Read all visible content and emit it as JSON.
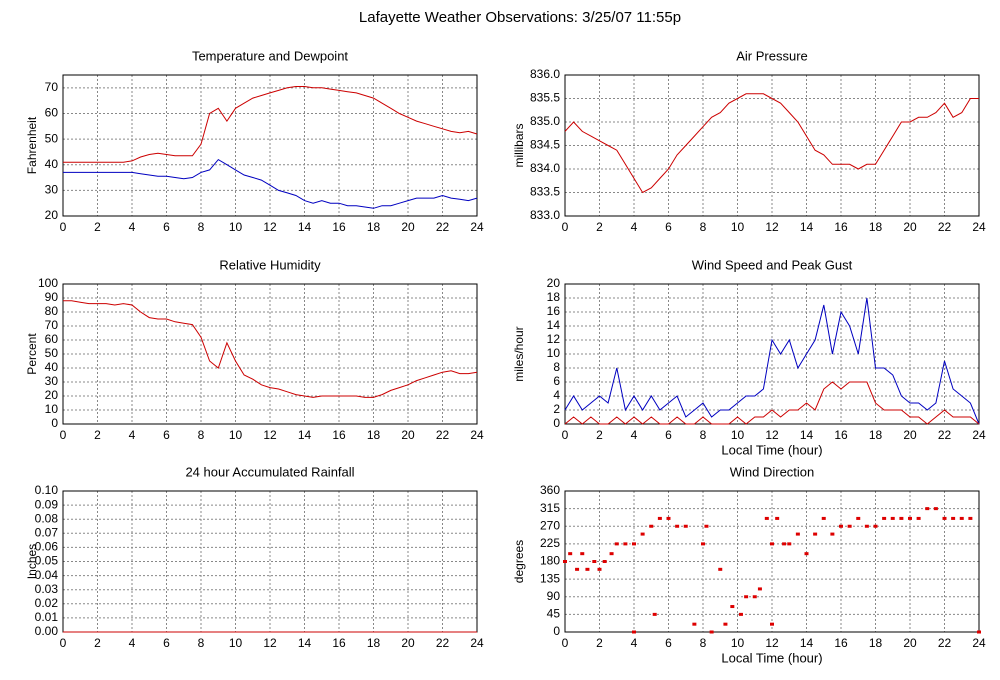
{
  "title": "Lafayette Weather Observations: 3/25/07 11:55p",
  "chart_data": [
    {
      "type": "line",
      "title": "Temperature and Dewpoint",
      "ylabel": "Fahrenheit",
      "grid": true,
      "xlim": [
        0,
        24
      ],
      "xticks": [
        0,
        2,
        4,
        6,
        8,
        10,
        12,
        14,
        16,
        18,
        20,
        22,
        24
      ],
      "ylim": [
        20,
        75
      ],
      "yticks": [
        20,
        30,
        40,
        50,
        60,
        70
      ],
      "x": [
        0,
        0.5,
        1,
        1.5,
        2,
        2.5,
        3,
        3.5,
        4,
        4.5,
        5,
        5.5,
        6,
        6.5,
        7,
        7.5,
        8,
        8.5,
        9,
        9.5,
        10,
        10.5,
        11,
        11.5,
        12,
        12.5,
        13,
        13.5,
        14,
        14.5,
        15,
        15.5,
        16,
        16.5,
        17,
        17.5,
        18,
        18.5,
        19,
        19.5,
        20,
        20.5,
        21,
        21.5,
        22,
        22.5,
        23,
        23.5,
        24
      ],
      "series": [
        {
          "color": "#cc0000",
          "values": [
            41,
            41,
            41,
            41,
            41,
            41,
            41,
            41,
            41.5,
            43,
            44,
            44.5,
            44,
            43.5,
            43.5,
            43.5,
            48,
            60,
            62,
            57,
            62,
            64,
            66,
            67,
            68,
            69,
            70,
            70.5,
            70.5,
            70,
            70,
            69.5,
            69,
            68.5,
            68,
            67,
            66,
            64,
            62,
            60,
            58.5,
            57,
            56,
            55,
            54,
            53,
            52.5,
            53,
            52
          ]
        },
        {
          "color": "#0000c0",
          "values": [
            37,
            37,
            37,
            37,
            37,
            37,
            37,
            37,
            37,
            36.5,
            36,
            35.5,
            35.5,
            35,
            34.5,
            35,
            37,
            38,
            42,
            40,
            38,
            36,
            35,
            34,
            32,
            30,
            29,
            28,
            26,
            25,
            26,
            25,
            25,
            24,
            24,
            23.5,
            23,
            24,
            24,
            25,
            26,
            27,
            27,
            27,
            28,
            27,
            26.5,
            26,
            27
          ]
        }
      ]
    },
    {
      "type": "line",
      "title": "Air Pressure",
      "ylabel": "millibars",
      "grid": true,
      "xlim": [
        0,
        24
      ],
      "xticks": [
        0,
        2,
        4,
        6,
        8,
        10,
        12,
        14,
        16,
        18,
        20,
        22,
        24
      ],
      "ylim": [
        833,
        836
      ],
      "yticks": [
        {
          "value": 833,
          "label": "833.0"
        },
        {
          "value": 833.5,
          "label": "833.5"
        },
        {
          "value": 834,
          "label": "834.0"
        },
        {
          "value": 834.5,
          "label": "834.5"
        },
        {
          "value": 835,
          "label": "835.0"
        },
        {
          "value": 835.5,
          "label": "835.5"
        },
        {
          "value": 836,
          "label": "836.0"
        }
      ],
      "x": [
        0,
        0.5,
        1,
        1.5,
        2,
        2.5,
        3,
        3.5,
        4,
        4.5,
        5,
        5.5,
        6,
        6.5,
        7,
        7.5,
        8,
        8.5,
        9,
        9.5,
        10,
        10.5,
        11,
        11.5,
        12,
        12.5,
        13,
        13.5,
        14,
        14.5,
        15,
        15.5,
        16,
        16.5,
        17,
        17.5,
        18,
        18.5,
        19,
        19.5,
        20,
        20.5,
        21,
        21.5,
        22,
        22.5,
        23,
        23.5,
        24
      ],
      "series": [
        {
          "color": "#cc0000",
          "values": [
            834.8,
            835,
            834.8,
            834.7,
            834.6,
            834.5,
            834.4,
            834.1,
            833.8,
            833.5,
            833.6,
            833.8,
            834,
            834.3,
            834.5,
            834.7,
            834.9,
            835.1,
            835.2,
            835.4,
            835.5,
            835.6,
            835.6,
            835.6,
            835.5,
            835.4,
            835.2,
            835,
            834.7,
            834.4,
            834.3,
            834.1,
            834.1,
            834.1,
            834,
            834.1,
            834.1,
            834.4,
            834.7,
            835,
            835,
            835.1,
            835.1,
            835.2,
            835.4,
            835.1,
            835.2,
            835.5,
            835.5
          ]
        }
      ]
    },
    {
      "type": "line",
      "title": "Relative Humidity",
      "ylabel": "Percent",
      "grid": true,
      "xlim": [
        0,
        24
      ],
      "xticks": [
        0,
        2,
        4,
        6,
        8,
        10,
        12,
        14,
        16,
        18,
        20,
        22,
        24
      ],
      "ylim": [
        0,
        100
      ],
      "yticks": [
        0,
        10,
        20,
        30,
        40,
        50,
        60,
        70,
        80,
        90,
        100
      ],
      "x": [
        0,
        0.5,
        1,
        1.5,
        2,
        2.5,
        3,
        3.5,
        4,
        4.5,
        5,
        5.5,
        6,
        6.5,
        7,
        7.5,
        8,
        8.5,
        9,
        9.5,
        10,
        10.5,
        11,
        11.5,
        12,
        12.5,
        13,
        13.5,
        14,
        14.5,
        15,
        15.5,
        16,
        16.5,
        17,
        17.5,
        18,
        18.5,
        19,
        19.5,
        20,
        20.5,
        21,
        21.5,
        22,
        22.5,
        23,
        23.5,
        24
      ],
      "series": [
        {
          "color": "#cc0000",
          "values": [
            88,
            88,
            87,
            86,
            86,
            86,
            85,
            86,
            85,
            80,
            76,
            75,
            75,
            73,
            72,
            71,
            62,
            45,
            40,
            58,
            45,
            35,
            32,
            28,
            26,
            25,
            23,
            21,
            20,
            19,
            20,
            20,
            20,
            20,
            20,
            19,
            19,
            21,
            24,
            26,
            28,
            31,
            33,
            35,
            37,
            38,
            36,
            36,
            37
          ]
        }
      ]
    },
    {
      "type": "line",
      "title": "Wind Speed and Peak Gust",
      "ylabel": "miles/hour",
      "xlabel": "Local Time (hour)",
      "grid": true,
      "xlim": [
        0,
        24
      ],
      "xticks": [
        0,
        2,
        4,
        6,
        8,
        10,
        12,
        14,
        16,
        18,
        20,
        22,
        24
      ],
      "ylim": [
        0,
        20
      ],
      "yticks": [
        0,
        2,
        4,
        6,
        8,
        10,
        12,
        14,
        16,
        18,
        20
      ],
      "x": [
        0,
        0.5,
        1,
        1.5,
        2,
        2.5,
        3,
        3.5,
        4,
        4.5,
        5,
        5.5,
        6,
        6.5,
        7,
        7.5,
        8,
        8.5,
        9,
        9.5,
        10,
        10.5,
        11,
        11.5,
        12,
        12.5,
        13,
        13.5,
        14,
        14.5,
        15,
        15.5,
        16,
        16.5,
        17,
        17.5,
        18,
        18.5,
        19,
        19.5,
        20,
        20.5,
        21,
        21.5,
        22,
        22.5,
        23,
        23.5,
        24
      ],
      "series": [
        {
          "color": "#0000c0",
          "values": [
            2,
            4,
            2,
            3,
            4,
            3,
            8,
            2,
            4,
            2,
            4,
            2,
            3,
            4,
            1,
            2,
            3,
            1,
            2,
            2,
            3,
            4,
            4,
            5,
            12,
            10,
            12,
            8,
            10,
            12,
            17,
            10,
            16,
            14,
            10,
            18,
            8,
            8,
            7,
            4,
            3,
            3,
            2,
            3,
            9,
            5,
            4,
            3,
            0
          ]
        },
        {
          "color": "#cc0000",
          "values": [
            0,
            1,
            0,
            1,
            0,
            0,
            1,
            0,
            1,
            0,
            1,
            0,
            0,
            1,
            0,
            0,
            1,
            0,
            0,
            0,
            1,
            0,
            1,
            1,
            2,
            1,
            2,
            2,
            3,
            2,
            5,
            6,
            5,
            6,
            6,
            6,
            3,
            2,
            2,
            2,
            1,
            1,
            0,
            1,
            2,
            1,
            1,
            1,
            0
          ]
        }
      ]
    },
    {
      "type": "line",
      "title": "24 hour Accumulated Rainfall",
      "ylabel": "Inches",
      "grid": true,
      "xlim": [
        0,
        24
      ],
      "xticks": [
        0,
        2,
        4,
        6,
        8,
        10,
        12,
        14,
        16,
        18,
        20,
        22,
        24
      ],
      "ylim": [
        0,
        0.1
      ],
      "yticks": [
        {
          "value": 0,
          "label": "0.00"
        },
        {
          "value": 0.01,
          "label": "0.01"
        },
        {
          "value": 0.02,
          "label": "0.02"
        },
        {
          "value": 0.03,
          "label": "0.03"
        },
        {
          "value": 0.04,
          "label": "0.04"
        },
        {
          "value": 0.05,
          "label": "0.05"
        },
        {
          "value": 0.06,
          "label": "0.06"
        },
        {
          "value": 0.07,
          "label": "0.07"
        },
        {
          "value": 0.08,
          "label": "0.08"
        },
        {
          "value": 0.09,
          "label": "0.09"
        },
        {
          "value": 0.1,
          "label": "0.10"
        }
      ],
      "x": [
        0,
        24
      ],
      "series": [
        {
          "color": "#cc0000",
          "values": [
            0,
            0
          ]
        }
      ]
    },
    {
      "type": "scatter",
      "title": "Wind Direction",
      "ylabel": "degrees",
      "xlabel": "Local Time (hour)",
      "grid": true,
      "xlim": [
        0,
        24
      ],
      "xticks": [
        0,
        2,
        4,
        6,
        8,
        10,
        12,
        14,
        16,
        18,
        20,
        22,
        24
      ],
      "ylim": [
        0,
        360
      ],
      "yticks": [
        0,
        45,
        90,
        135,
        180,
        225,
        270,
        315,
        360
      ],
      "x": [
        0,
        0.3,
        0.7,
        1,
        1.3,
        1.7,
        2,
        2.3,
        2.7,
        3,
        3.5,
        4,
        4,
        4.5,
        5,
        5.2,
        5.5,
        6,
        6.5,
        7,
        7.5,
        8,
        8.2,
        8.5,
        9,
        9.3,
        9.7,
        10.2,
        10.5,
        11,
        11.3,
        11.7,
        12,
        12,
        12.3,
        12.7,
        13,
        13.5,
        14,
        14.5,
        15,
        15.5,
        16,
        16.5,
        17,
        17.5,
        18,
        18.5,
        19,
        19.5,
        20,
        20.5,
        21,
        21.5,
        22,
        22.5,
        23,
        23.5,
        24
      ],
      "series": [
        {
          "color": "#dd0000",
          "values": [
            180,
            200,
            160,
            200,
            160,
            180,
            160,
            180,
            200,
            225,
            225,
            225,
            0,
            250,
            270,
            45,
            290,
            290,
            270,
            270,
            20,
            225,
            270,
            0,
            160,
            20,
            65,
            45,
            90,
            90,
            110,
            290,
            225,
            20,
            290,
            225,
            225,
            250,
            200,
            250,
            290,
            250,
            270,
            270,
            290,
            270,
            270,
            290,
            290,
            290,
            290,
            290,
            315,
            315,
            290,
            290,
            290,
            290,
            0
          ]
        }
      ]
    }
  ]
}
